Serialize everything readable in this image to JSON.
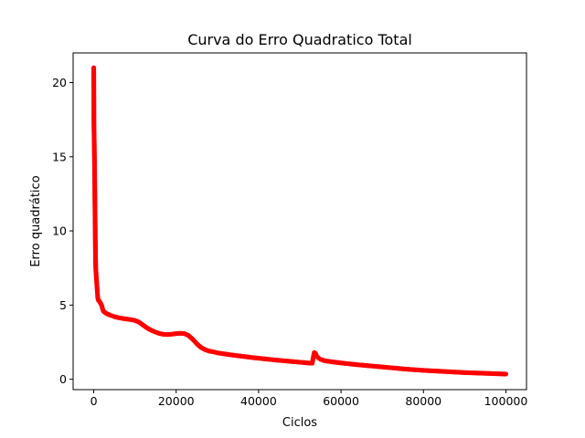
{
  "chart_data": {
    "type": "scatter",
    "title": "Curva do Erro Quadratico Total",
    "xlabel": "Ciclos",
    "ylabel": "Erro quadrático",
    "xlim": [
      -5000,
      105000
    ],
    "ylim": [
      -0.7,
      22.0
    ],
    "x_ticks": [
      0,
      20000,
      40000,
      60000,
      80000,
      100000
    ],
    "x_tick_labels": [
      "0",
      "20000",
      "40000",
      "60000",
      "80000",
      "100000"
    ],
    "y_ticks": [
      0,
      5,
      10,
      15,
      20
    ],
    "y_tick_labels": [
      "0",
      "5",
      "10",
      "15",
      "20"
    ],
    "grid": false,
    "legend": "none",
    "marker_color": "#ff0000",
    "series": [
      {
        "points": [
          [
            0,
            21.0
          ],
          [
            20,
            19.4
          ],
          [
            40,
            17.5
          ],
          [
            60,
            16.8
          ],
          [
            80,
            16.6
          ],
          [
            100,
            16.3
          ],
          [
            120,
            16.0
          ],
          [
            140,
            15.6
          ],
          [
            160,
            15.2
          ],
          [
            180,
            14.8
          ],
          [
            200,
            14.3
          ],
          [
            220,
            13.8
          ],
          [
            240,
            13.3
          ],
          [
            260,
            12.8
          ],
          [
            280,
            12.2
          ],
          [
            300,
            11.6
          ],
          [
            320,
            11.0
          ],
          [
            340,
            10.5
          ],
          [
            360,
            10.0
          ],
          [
            380,
            9.5
          ],
          [
            400,
            9.0
          ],
          [
            420,
            8.6
          ],
          [
            440,
            8.2
          ],
          [
            460,
            7.9
          ],
          [
            480,
            7.6
          ],
          [
            500,
            7.4
          ],
          [
            550,
            7.2
          ],
          [
            600,
            7.0
          ],
          [
            650,
            6.8
          ],
          [
            700,
            6.6
          ],
          [
            750,
            6.4
          ],
          [
            800,
            6.2
          ],
          [
            850,
            6.0
          ],
          [
            900,
            5.8
          ],
          [
            950,
            5.6
          ],
          [
            1000,
            5.45
          ],
          [
            1100,
            5.35
          ],
          [
            1200,
            5.3
          ],
          [
            1300,
            5.28
          ],
          [
            1400,
            5.25
          ],
          [
            1500,
            5.2
          ],
          [
            1600,
            5.15
          ],
          [
            1700,
            5.1
          ],
          [
            1800,
            5.05
          ],
          [
            1900,
            5.0
          ],
          [
            2000,
            4.9
          ],
          [
            2100,
            4.8
          ],
          [
            2200,
            4.7
          ],
          [
            2300,
            4.62
          ],
          [
            2400,
            4.58
          ],
          [
            2500,
            4.55
          ],
          [
            3000,
            4.45
          ],
          [
            3500,
            4.38
          ],
          [
            4000,
            4.32
          ],
          [
            4500,
            4.27
          ],
          [
            5000,
            4.22
          ],
          [
            6000,
            4.15
          ],
          [
            7000,
            4.1
          ],
          [
            8000,
            4.06
          ],
          [
            9000,
            4.02
          ],
          [
            10000,
            3.97
          ],
          [
            11000,
            3.85
          ],
          [
            12000,
            3.65
          ],
          [
            13000,
            3.45
          ],
          [
            14000,
            3.3
          ],
          [
            15000,
            3.18
          ],
          [
            16000,
            3.08
          ],
          [
            17000,
            3.03
          ],
          [
            18000,
            3.02
          ],
          [
            19000,
            3.04
          ],
          [
            20000,
            3.08
          ],
          [
            21000,
            3.1
          ],
          [
            22000,
            3.08
          ],
          [
            23000,
            2.95
          ],
          [
            24000,
            2.7
          ],
          [
            25000,
            2.4
          ],
          [
            26000,
            2.15
          ],
          [
            27000,
            2.0
          ],
          [
            28000,
            1.9
          ],
          [
            29000,
            1.85
          ],
          [
            30000,
            1.78
          ],
          [
            32000,
            1.7
          ],
          [
            34000,
            1.62
          ],
          [
            36000,
            1.55
          ],
          [
            38000,
            1.48
          ],
          [
            40000,
            1.42
          ],
          [
            42000,
            1.36
          ],
          [
            44000,
            1.3
          ],
          [
            46000,
            1.25
          ],
          [
            48000,
            1.2
          ],
          [
            50000,
            1.15
          ],
          [
            52000,
            1.1
          ],
          [
            53000,
            1.08
          ],
          [
            53500,
            1.8
          ],
          [
            53800,
            1.75
          ],
          [
            54000,
            1.6
          ],
          [
            54300,
            1.5
          ],
          [
            54600,
            1.42
          ],
          [
            55000,
            1.35
          ],
          [
            56000,
            1.25
          ],
          [
            58000,
            1.17
          ],
          [
            60000,
            1.1
          ],
          [
            62000,
            1.04
          ],
          [
            64000,
            0.98
          ],
          [
            66000,
            0.93
          ],
          [
            68000,
            0.88
          ],
          [
            70000,
            0.83
          ],
          [
            72000,
            0.78
          ],
          [
            74000,
            0.73
          ],
          [
            76000,
            0.68
          ],
          [
            78000,
            0.64
          ],
          [
            80000,
            0.6
          ],
          [
            82000,
            0.57
          ],
          [
            84000,
            0.54
          ],
          [
            86000,
            0.51
          ],
          [
            88000,
            0.48
          ],
          [
            90000,
            0.45
          ],
          [
            92000,
            0.43
          ],
          [
            94000,
            0.41
          ],
          [
            96000,
            0.39
          ],
          [
            98000,
            0.37
          ],
          [
            100000,
            0.35
          ]
        ]
      }
    ]
  }
}
